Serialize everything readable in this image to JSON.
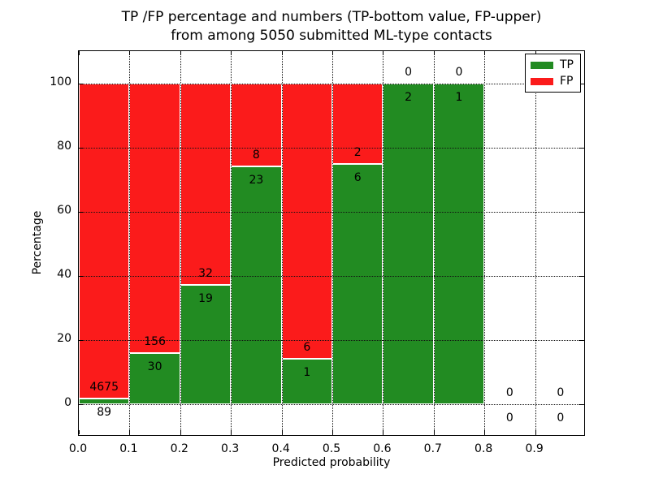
{
  "figure": {
    "title_line1": "TP /FP percentage and numbers (TP-bottom value, FP-upper)",
    "title_line2": "from among 5050 submitted ML-type contacts"
  },
  "axes": {
    "xlabel": "Predicted probability",
    "ylabel": "Percentage",
    "xtick_labels": [
      "0.0",
      "0.1",
      "0.2",
      "0.3",
      "0.4",
      "0.5",
      "0.6",
      "0.7",
      "0.8",
      "0.9"
    ],
    "xtick_values": [
      0,
      0.1,
      0.2,
      0.3,
      0.4,
      0.5,
      0.6,
      0.7,
      0.8,
      0.9
    ],
    "ytick_labels": [
      "0",
      "20",
      "40",
      "60",
      "80",
      "100"
    ],
    "ytick_values": [
      0,
      20,
      40,
      60,
      80,
      100
    ],
    "xlim": [
      0,
      1
    ],
    "ylim": [
      -10,
      110
    ],
    "grid_style": "dotted"
  },
  "legend": {
    "position": "upper-right",
    "items": [
      {
        "label": "TP",
        "color": "#228b22"
      },
      {
        "label": "FP",
        "color": "#fb1b1b"
      }
    ]
  },
  "chart_data": {
    "type": "bar",
    "stacked": true,
    "title": "TP /FP percentage and numbers (TP-bottom value, FP-upper) from among 5050 submitted ML-type contacts",
    "xlabel": "Predicted probability",
    "ylabel": "Percentage",
    "xlim": [
      0,
      1
    ],
    "ylim": [
      -10,
      110
    ],
    "grid": true,
    "legend_position": "upper right",
    "bin_width": 0.1,
    "colors": {
      "tp": "#228b22",
      "fp": "#fb1b1b"
    },
    "series_names": [
      "TP",
      "FP"
    ],
    "bins": [
      {
        "range": "0.0-0.1",
        "tp_count": 89,
        "fp_count": 4675,
        "tp_percent": 1.87,
        "fp_percent": 98.13
      },
      {
        "range": "0.1-0.2",
        "tp_count": 30,
        "fp_count": 156,
        "tp_percent": 16.13,
        "fp_percent": 83.87
      },
      {
        "range": "0.2-0.3",
        "tp_count": 19,
        "fp_count": 32,
        "tp_percent": 37.25,
        "fp_percent": 62.75
      },
      {
        "range": "0.3-0.4",
        "tp_count": 23,
        "fp_count": 8,
        "tp_percent": 74.19,
        "fp_percent": 25.81
      },
      {
        "range": "0.4-0.5",
        "tp_count": 1,
        "fp_count": 6,
        "tp_percent": 14.29,
        "fp_percent": 85.71
      },
      {
        "range": "0.5-0.6",
        "tp_count": 6,
        "fp_count": 2,
        "tp_percent": 75.0,
        "fp_percent": 25.0
      },
      {
        "range": "0.6-0.7",
        "tp_count": 2,
        "fp_count": 0,
        "tp_percent": 100.0,
        "fp_percent": 0.0
      },
      {
        "range": "0.7-0.8",
        "tp_count": 1,
        "fp_count": 0,
        "tp_percent": 100.0,
        "fp_percent": 0.0
      },
      {
        "range": "0.8-0.9",
        "tp_count": 0,
        "fp_count": 0,
        "tp_percent": 0.0,
        "fp_percent": 0.0
      },
      {
        "range": "0.9-1.0",
        "tp_count": 0,
        "fp_count": 0,
        "tp_percent": 0.0,
        "fp_percent": 0.0
      }
    ]
  }
}
